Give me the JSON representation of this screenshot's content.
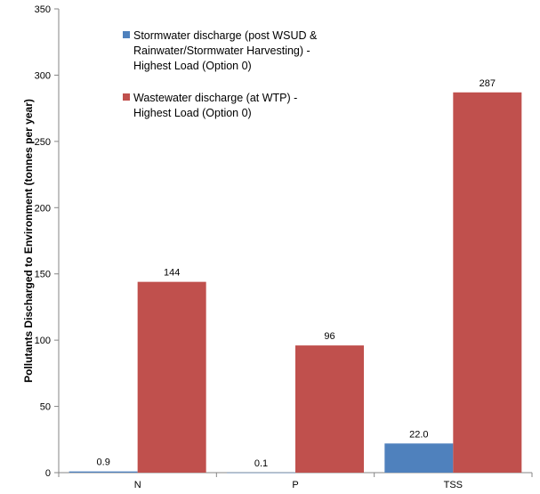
{
  "chart_data": {
    "type": "bar",
    "ylabel": "Pollutants Discharged to Environment (tonnes per year)",
    "ylim": [
      0,
      350
    ],
    "yticks": [
      0,
      50,
      100,
      150,
      200,
      250,
      300,
      350
    ],
    "categories": [
      "N",
      "P",
      "TSS"
    ],
    "series": [
      {
        "name": "Stormwater discharge (post WSUD & Rainwater/Stormwater Harvesting) - Highest Load (Option 0)",
        "legend_lines": [
          "Stormwater discharge (post WSUD &",
          "Rainwater/Stormwater Harvesting)  -",
          "Highest Load (Option 0)"
        ],
        "color": "#4f81bd",
        "values": [
          0.9,
          0.1,
          22.0
        ],
        "labels": [
          "0.9",
          "0.1",
          "22.0"
        ]
      },
      {
        "name": "Wastewater discharge (at WTP) - Highest Load (Option 0)",
        "legend_lines": [
          "Wastewater discharge (at WTP) -",
          "Highest Load (Option 0)"
        ],
        "color": "#c0504d",
        "values": [
          144,
          96,
          287
        ],
        "labels": [
          "144",
          "96",
          "287"
        ]
      }
    ],
    "legend_position": "top-left",
    "grid": false
  }
}
